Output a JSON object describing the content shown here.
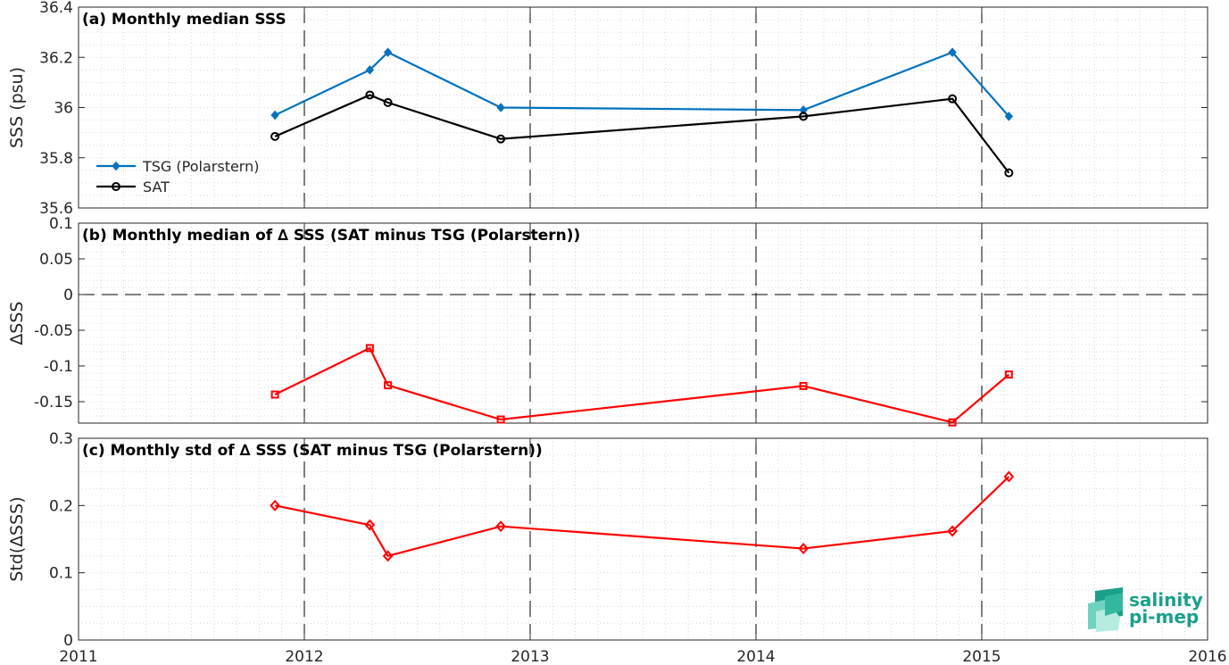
{
  "chart_data": [
    {
      "type": "line",
      "title": "(a) Monthly median SSS",
      "xlabel": "",
      "ylabel": "SSS (psu)",
      "xlim": [
        2011,
        2016
      ],
      "ylim": [
        35.6,
        36.4
      ],
      "xticks": [
        "2011",
        "2012",
        "2013",
        "2014",
        "2015",
        "2016"
      ],
      "yticks": [
        "35.6",
        "35.8",
        "36",
        "36.2",
        "36.4"
      ],
      "grid": true,
      "legend": "left",
      "series": [
        {
          "name": "TSG (Polarstern)",
          "color": "#0072bd",
          "marker": "filled-diamond",
          "x": [
            2011.87,
            2012.29,
            2012.37,
            2012.87,
            2014.21,
            2014.87,
            2015.12
          ],
          "values": [
            35.97,
            36.15,
            36.22,
            36.0,
            35.99,
            36.22,
            35.965
          ],
          "segments": [
            [
              0,
              5
            ],
            [
              5,
              6
            ]
          ]
        },
        {
          "name": "SAT",
          "color": "#000000",
          "marker": "open-circle",
          "x": [
            2011.87,
            2012.29,
            2012.37,
            2012.87,
            2014.21,
            2014.87,
            2015.12
          ],
          "values": [
            35.885,
            36.05,
            36.02,
            35.875,
            35.965,
            36.035,
            35.74
          ],
          "segments": [
            [
              0,
              6
            ]
          ]
        }
      ]
    },
    {
      "type": "line",
      "title": "(b) Monthly median of ∆ SSS (SAT minus TSG (Polarstern))",
      "xlabel": "",
      "ylabel": "∆SSS",
      "xlim": [
        2011,
        2016
      ],
      "ylim": [
        -0.18,
        0.1
      ],
      "xticks": [
        "2011",
        "2012",
        "2013",
        "2014",
        "2015",
        "2016"
      ],
      "yticks": [
        "-0.15",
        "-0.1",
        "-0.05",
        "0",
        "0.05",
        "0.1"
      ],
      "grid": true,
      "reference_line": 0,
      "series": [
        {
          "name": "",
          "color": "#ff0000",
          "marker": "open-square",
          "x": [
            2011.87,
            2012.29,
            2012.37,
            2012.87,
            2014.21,
            2014.87,
            2015.12
          ],
          "values": [
            -0.14,
            -0.075,
            -0.127,
            -0.175,
            -0.128,
            -0.179,
            -0.112
          ],
          "segments": [
            [
              0,
              6
            ]
          ]
        }
      ]
    },
    {
      "type": "line",
      "title": "(c) Monthly std of ∆ SSS (SAT minus TSG (Polarstern))",
      "xlabel": "",
      "ylabel": "Std(∆SSS)",
      "xlim": [
        2011,
        2016
      ],
      "ylim": [
        0,
        0.3
      ],
      "xticks": [
        "2011",
        "2012",
        "2013",
        "2014",
        "2015",
        "2016"
      ],
      "yticks": [
        "0",
        "0.1",
        "0.2",
        "0.3"
      ],
      "grid": true,
      "series": [
        {
          "name": "",
          "color": "#ff0000",
          "marker": "open-diamond",
          "x": [
            2011.87,
            2012.29,
            2012.37,
            2012.87,
            2014.21,
            2014.87,
            2015.12
          ],
          "values": [
            0.2,
            0.171,
            0.125,
            0.169,
            0.136,
            0.162,
            0.243
          ],
          "segments": [
            [
              0,
              6
            ]
          ]
        }
      ]
    }
  ],
  "logo": {
    "line1": "salinity",
    "line2": "pi-mep"
  }
}
